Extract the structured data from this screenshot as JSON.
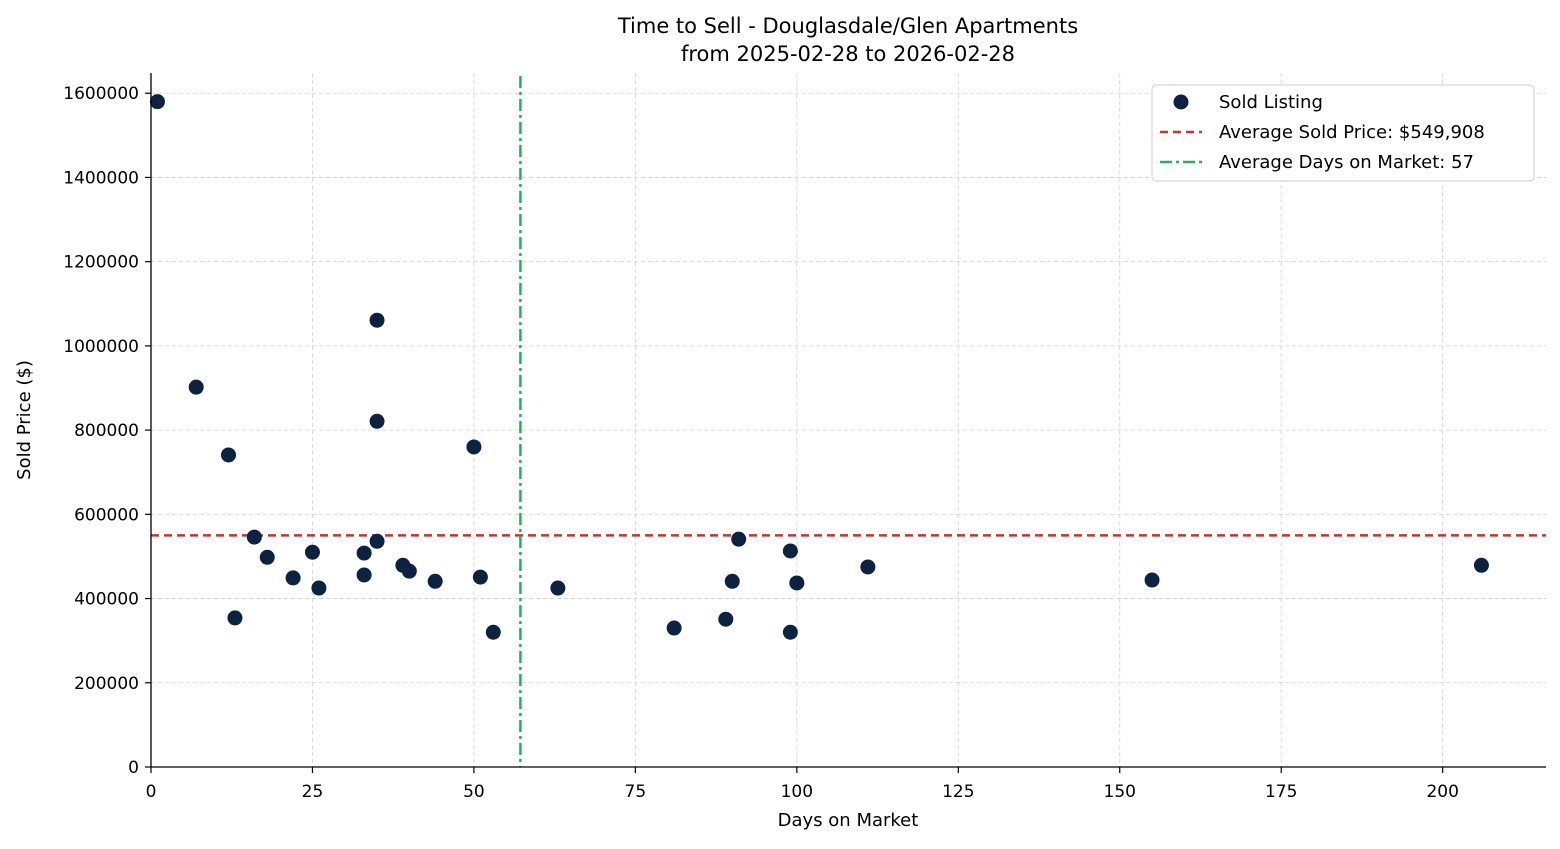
{
  "chart_data": {
    "type": "scatter",
    "title": "Time to Sell - Douglasdale/Glen Apartments",
    "subtitle": "from 2025-02-28 to 2026-02-28",
    "xlabel": "Days on Market",
    "ylabel": "Sold Price ($)",
    "xlim": [
      0,
      216
    ],
    "ylim": [
      0,
      1648000
    ],
    "xticks": [
      0,
      25,
      50,
      75,
      100,
      125,
      150,
      175,
      200
    ],
    "yticks": [
      0,
      200000,
      400000,
      600000,
      800000,
      1000000,
      1200000,
      1400000,
      1600000
    ],
    "grid": true,
    "legend_position": "top-right",
    "series": [
      {
        "name": "Sold Listing",
        "color": "#0b2240",
        "points": [
          [
            1,
            1580000
          ],
          [
            7,
            902000
          ],
          [
            12,
            741000
          ],
          [
            13,
            354000
          ],
          [
            16,
            546000
          ],
          [
            18,
            498000
          ],
          [
            22,
            449000
          ],
          [
            25,
            510000
          ],
          [
            26,
            425000
          ],
          [
            33,
            508000
          ],
          [
            33,
            456000
          ],
          [
            35,
            1061000
          ],
          [
            35,
            821000
          ],
          [
            35,
            536000
          ],
          [
            39,
            479000
          ],
          [
            40,
            465000
          ],
          [
            44,
            441000
          ],
          [
            50,
            760000
          ],
          [
            51,
            451000
          ],
          [
            53,
            320000
          ],
          [
            63,
            425000
          ],
          [
            81,
            330000
          ],
          [
            89,
            351000
          ],
          [
            90,
            441000
          ],
          [
            91,
            541000
          ],
          [
            99,
            513000
          ],
          [
            99,
            320000
          ],
          [
            100,
            437000
          ],
          [
            111,
            475000
          ],
          [
            155,
            444000
          ],
          [
            206,
            479000
          ]
        ]
      }
    ],
    "reference_lines": [
      {
        "name": "Average Sold Price: $549,908",
        "orientation": "horizontal",
        "value": 549908,
        "color": "#c0392b",
        "style": "dashed"
      },
      {
        "name": "Average Days on Market: 57",
        "orientation": "vertical",
        "value": 57.2,
        "color": "#27ae60",
        "style": "dashdot"
      }
    ]
  }
}
